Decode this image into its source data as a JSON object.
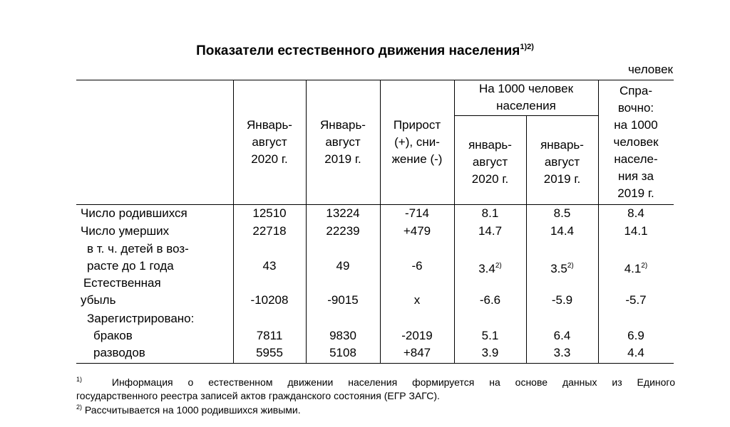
{
  "title": "Показатели естественного движения населения",
  "title_note": "1)2)",
  "unit": "человек",
  "headers": {
    "jan_aug_2020": [
      "Январь-",
      "август",
      "2020 г."
    ],
    "jan_aug_2019": [
      "Январь-",
      "август",
      "2019 г."
    ],
    "change": [
      "Прирост",
      "(+), сни-",
      "жение (-)"
    ],
    "per_1000_group": [
      "На 1000 человек",
      "населения"
    ],
    "per_1000_2020": [
      "январь-",
      "август",
      "2020 г."
    ],
    "per_1000_2019": [
      "январь-",
      "август",
      "2019 г."
    ],
    "reference": [
      "Спра-",
      "вочно:",
      "на 1000",
      "человек",
      "населе-",
      "ния за",
      "2019 г."
    ]
  },
  "rows": [
    {
      "label": "Число родившихся",
      "v2020": "12510",
      "v2019": "13224",
      "change": "-714",
      "r2020": "8.1",
      "r2019": "8.5",
      "ref": "8.4"
    },
    {
      "label": "Число умерших",
      "v2020": "22718",
      "v2019": "22239",
      "change": "+479",
      "r2020": "14.7",
      "r2019": "14.4",
      "ref": "14.1"
    },
    {
      "label": [
        "в т. ч. детей в воз-",
        "расте до 1 года"
      ],
      "v2020": "43",
      "v2019": "49",
      "change": "-6",
      "r2020": "3.4",
      "r2019": "3.5",
      "ref": "4.1",
      "note": "2)"
    },
    {
      "label": [
        "Естественная",
        "убыль"
      ],
      "v2020": "-10208",
      "v2019": "-9015",
      "change": "х",
      "r2020": "-6.6",
      "r2019": "-5.9",
      "ref": "-5.7"
    },
    {
      "label": "Зарегистрировано:"
    },
    {
      "label": "браков",
      "v2020": "7811",
      "v2019": "9830",
      "change": "-2019",
      "r2020": "5.1",
      "r2019": "6.4",
      "ref": "6.9"
    },
    {
      "label": "разводов",
      "v2020": "5955",
      "v2019": "5108",
      "change": "+847",
      "r2020": "3.9",
      "r2019": "3.3",
      "ref": "4.4"
    }
  ],
  "footnotes": [
    {
      "mark": "1)",
      "text": [
        "Информация о естественном движении населения формируется на основе данных из Единого",
        "государственного реестра записей актов гражданского состояния (ЕГР ЗАГС)."
      ]
    },
    {
      "mark": "2)",
      "text": [
        "Рассчитывается на 1000 родившихся живыми."
      ]
    }
  ]
}
